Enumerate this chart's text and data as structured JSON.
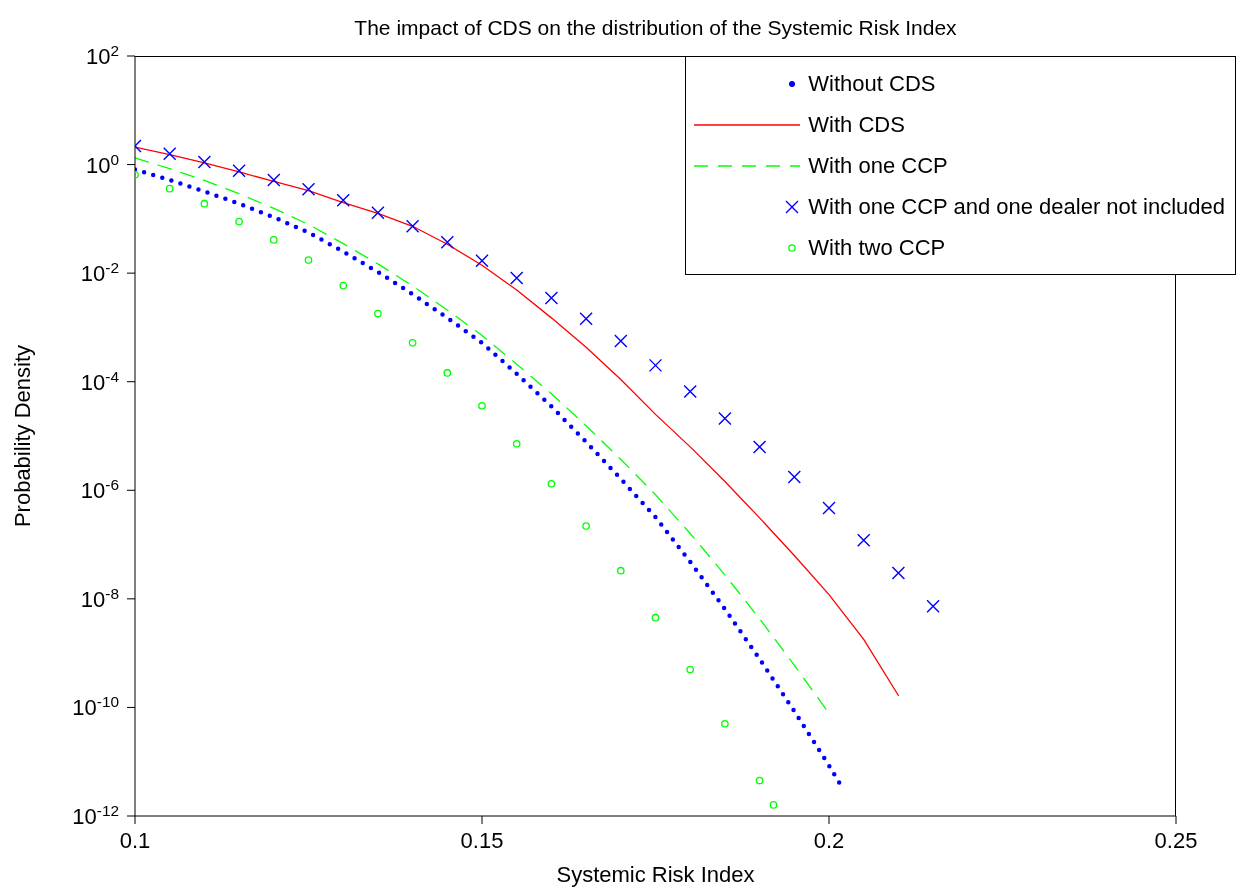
{
  "chart_data": {
    "type": "line",
    "title": "The impact of CDS on the distribution of the Systemic Risk Index",
    "xlabel": "Systemic Risk Index",
    "ylabel": "Probability Density",
    "log": "y",
    "grid": false,
    "legend": "top right",
    "xlim": [
      0.1,
      0.25
    ],
    "xticks": [
      0.1,
      0.15,
      0.2,
      0.25
    ],
    "ylim": [
      1e-12,
      100
    ],
    "yticks": [
      {
        "value": 1e-12,
        "label": "10$^{-12}$"
      },
      {
        "value": 1e-10,
        "label": "10$^{-10}$"
      },
      {
        "value": 1e-08,
        "label": "10$^{-8}$"
      },
      {
        "value": 1e-06,
        "label": "10$^{-6}$"
      },
      {
        "value": 0.0001,
        "label": "10$^{-4}$"
      },
      {
        "value": 0.01,
        "label": "10$^{-2}$"
      },
      {
        "value": 1,
        "label": "10$^{0}$"
      },
      {
        "value": 100,
        "label": "10$^{2}$"
      }
    ],
    "series": [
      {
        "name": "Without CDS",
        "line_style": "dotted",
        "marker": "none",
        "color": "#0000ff",
        "x": [
          0.1,
          0.105,
          0.11,
          0.115,
          0.12,
          0.125,
          0.13,
          0.135,
          0.14,
          0.145,
          0.15,
          0.155,
          0.16,
          0.165,
          0.17,
          0.175,
          0.18,
          0.185,
          0.19,
          0.195,
          0.2,
          0.202
        ],
        "values": [
          0.81,
          0.52,
          0.32,
          0.19,
          0.107,
          0.056,
          0.025,
          0.0105,
          0.0041,
          0.0015,
          0.00052,
          0.00014,
          3.5e-05,
          7.8e-06,
          1.62e-06,
          3.2e-07,
          4.8e-08,
          6.5e-09,
          7.8e-10,
          8.5e-11,
          8.5e-12,
          3.2e-12
        ]
      },
      {
        "name": "With CDS",
        "line_style": "solid",
        "marker": "none",
        "color": "#ff0000",
        "x": [
          0.1,
          0.105,
          0.11,
          0.115,
          0.12,
          0.125,
          0.13,
          0.135,
          0.14,
          0.145,
          0.15,
          0.155,
          0.16,
          0.165,
          0.17,
          0.175,
          0.18,
          0.185,
          0.19,
          0.195,
          0.2,
          0.205,
          0.21
        ],
        "values": [
          2.1,
          1.52,
          1.07,
          0.73,
          0.49,
          0.33,
          0.2,
          0.126,
          0.073,
          0.034,
          0.014,
          0.0049,
          0.0015,
          0.00043,
          0.00011,
          2.5e-05,
          6.3e-06,
          1.45e-06,
          3.1e-07,
          6.3e-08,
          1.2e-08,
          1.8e-09,
          1.66e-10
        ]
      },
      {
        "name": "With one CCP",
        "line_style": "dashed",
        "marker": "none",
        "color": "#00ff00",
        "x": [
          0.1,
          0.105,
          0.11,
          0.115,
          0.12,
          0.125,
          0.13,
          0.135,
          0.14,
          0.145,
          0.15,
          0.155,
          0.16,
          0.165,
          0.17,
          0.175,
          0.18,
          0.185,
          0.19,
          0.195,
          0.2
        ],
        "values": [
          1.33,
          0.84,
          0.51,
          0.29,
          0.156,
          0.079,
          0.035,
          0.0148,
          0.0058,
          0.0021,
          0.00071,
          0.00021,
          6e-05,
          1.55e-05,
          3.7e-06,
          8.3e-07,
          1.6e-07,
          2.75e-08,
          4.3e-09,
          6e-10,
          7.8e-11
        ]
      },
      {
        "name": "With one CCP and one dealer not included",
        "type": "scatter",
        "marker": "cross",
        "color": "#0000ff",
        "x": [
          0.1,
          0.105,
          0.11,
          0.115,
          0.12,
          0.125,
          0.13,
          0.135,
          0.14,
          0.145,
          0.15,
          0.155,
          0.16,
          0.165,
          0.17,
          0.175,
          0.18,
          0.185,
          0.19,
          0.195,
          0.2,
          0.205,
          0.21,
          0.215
        ],
        "values": [
          2.2,
          1.58,
          1.11,
          0.77,
          0.52,
          0.35,
          0.22,
          0.13,
          0.073,
          0.037,
          0.017,
          0.0081,
          0.0035,
          0.00145,
          0.00056,
          0.0002,
          6.6e-05,
          2.1e-05,
          6.3e-06,
          1.76e-06,
          4.7e-07,
          1.2e-07,
          3e-08,
          7.3e-09
        ]
      },
      {
        "name": "With two CCP",
        "type": "scatter",
        "marker": "circle",
        "color": "#00ff00",
        "x": [
          0.1,
          0.105,
          0.11,
          0.115,
          0.12,
          0.125,
          0.13,
          0.135,
          0.14,
          0.145,
          0.15,
          0.155,
          0.16,
          0.165,
          0.17,
          0.175,
          0.18,
          0.185,
          0.19,
          0.192
        ],
        "values": [
          0.65,
          0.36,
          0.19,
          0.089,
          0.041,
          0.0174,
          0.0059,
          0.0018,
          0.00052,
          0.000145,
          3.6e-05,
          7.2e-06,
          1.32e-06,
          2.2e-07,
          3.3e-08,
          4.5e-09,
          5e-10,
          5e-11,
          4.5e-12,
          1.6e-12
        ]
      }
    ]
  }
}
